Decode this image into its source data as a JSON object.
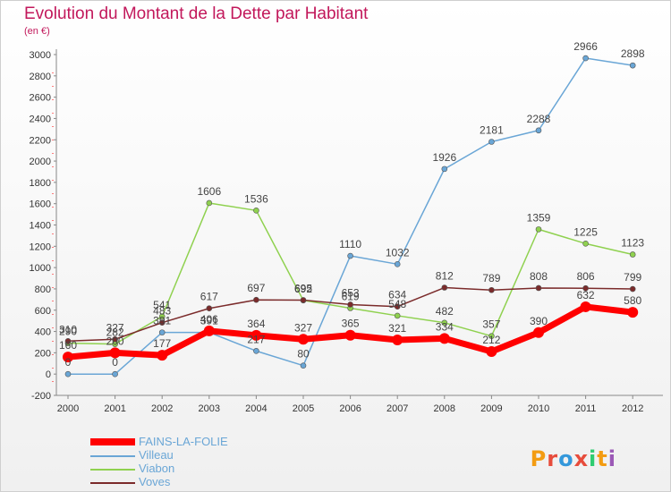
{
  "title": "Evolution du Montant de la Dette par Habitant",
  "unit": "(en €)",
  "logo": [
    "P",
    "r",
    "o",
    "x",
    "i",
    "t",
    "i"
  ],
  "chart_data": {
    "type": "line",
    "x": [
      "2000",
      "2001",
      "2002",
      "2003",
      "2004",
      "2005",
      "2006",
      "2007",
      "2008",
      "2009",
      "2010",
      "2011",
      "2012"
    ],
    "ylim": [
      -200,
      3000
    ],
    "yticks": [
      -200,
      0,
      200,
      400,
      600,
      800,
      1000,
      1200,
      1400,
      1600,
      1800,
      2000,
      2200,
      2400,
      2600,
      2800,
      3000
    ],
    "grid": false,
    "legend_position": "bottom-left",
    "series": [
      {
        "name": "FAINS-LA-FOLIE",
        "color": "#ff0000",
        "values": [
          160,
          200,
          177,
          406,
          364,
          327,
          365,
          321,
          334,
          212,
          390,
          632,
          580
        ],
        "labels": [
          "160",
          "200",
          "177",
          "406",
          "364",
          "327",
          "365",
          "321",
          "334",
          "212",
          "390",
          "632",
          "580"
        ]
      },
      {
        "name": "Villeau",
        "color": "#6aa6d6",
        "values": [
          0,
          0,
          391,
          391,
          217,
          80,
          1110,
          1032,
          1926,
          2181,
          2288,
          2966,
          2898
        ],
        "labels": [
          "0",
          "0",
          "391",
          "391",
          "217",
          "80",
          "1110",
          "1032",
          "1926",
          "2181",
          "2288",
          "2966",
          "2898"
        ]
      },
      {
        "name": "Viabon",
        "color": "#8fd14f",
        "values": [
          290,
          282,
          541,
          1606,
          1536,
          692,
          619,
          548,
          482,
          357,
          1359,
          1225,
          1123
        ],
        "labels": [
          "290",
          "282",
          "541",
          "1606",
          "1536",
          "692",
          "619",
          "548",
          "482",
          "357",
          "1359",
          "1225",
          "1123"
        ]
      },
      {
        "name": "Voves",
        "color": "#7b2b2b",
        "values": [
          310,
          327,
          483,
          617,
          697,
          695,
          653,
          634,
          812,
          789,
          808,
          806,
          799
        ],
        "labels": [
          "310",
          "327",
          "483",
          "617",
          "697",
          "695",
          "653",
          "634",
          "812",
          "789",
          "808",
          "806",
          "799"
        ]
      }
    ]
  }
}
